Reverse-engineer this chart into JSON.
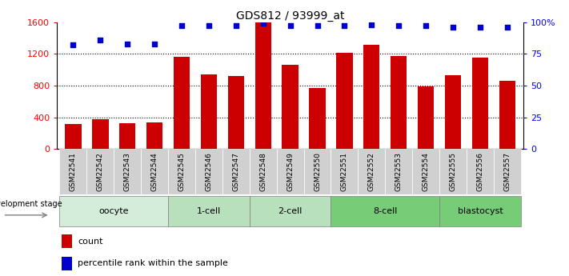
{
  "title": "GDS812 / 93999_at",
  "samples": [
    "GSM22541",
    "GSM22542",
    "GSM22543",
    "GSM22544",
    "GSM22545",
    "GSM22546",
    "GSM22547",
    "GSM22548",
    "GSM22549",
    "GSM22550",
    "GSM22551",
    "GSM22552",
    "GSM22553",
    "GSM22554",
    "GSM22555",
    "GSM22556",
    "GSM22557"
  ],
  "counts": [
    320,
    380,
    330,
    340,
    1160,
    940,
    920,
    1600,
    1060,
    770,
    1210,
    1310,
    1170,
    790,
    930,
    1150,
    860
  ],
  "percentile_ranks": [
    82,
    86,
    83,
    83,
    97,
    97,
    97,
    99,
    97,
    97,
    97,
    98,
    97,
    97,
    96,
    96,
    96
  ],
  "bar_color": "#cc0000",
  "dot_color": "#0000cc",
  "ylim_left": [
    0,
    1600
  ],
  "ylim_right": [
    0,
    100
  ],
  "yticks_left": [
    0,
    400,
    800,
    1200,
    1600
  ],
  "yticks_right": [
    0,
    25,
    50,
    75,
    100
  ],
  "ytick_labels_right": [
    "0",
    "25",
    "50",
    "75",
    "100%"
  ],
  "grid_values": [
    400,
    800,
    1200
  ],
  "stages": [
    {
      "label": "oocyte",
      "start": 0,
      "end": 4,
      "color": "#d4edda"
    },
    {
      "label": "1-cell",
      "start": 4,
      "end": 7,
      "color": "#b8e0bc"
    },
    {
      "label": "2-cell",
      "start": 7,
      "end": 10,
      "color": "#b8e0bc"
    },
    {
      "label": "8-cell",
      "start": 10,
      "end": 14,
      "color": "#77cc77"
    },
    {
      "label": "blastocyst",
      "start": 14,
      "end": 17,
      "color": "#77cc77"
    }
  ],
  "legend_count_label": "count",
  "legend_pct_label": "percentile rank within the sample",
  "dev_stage_label": "development stage"
}
